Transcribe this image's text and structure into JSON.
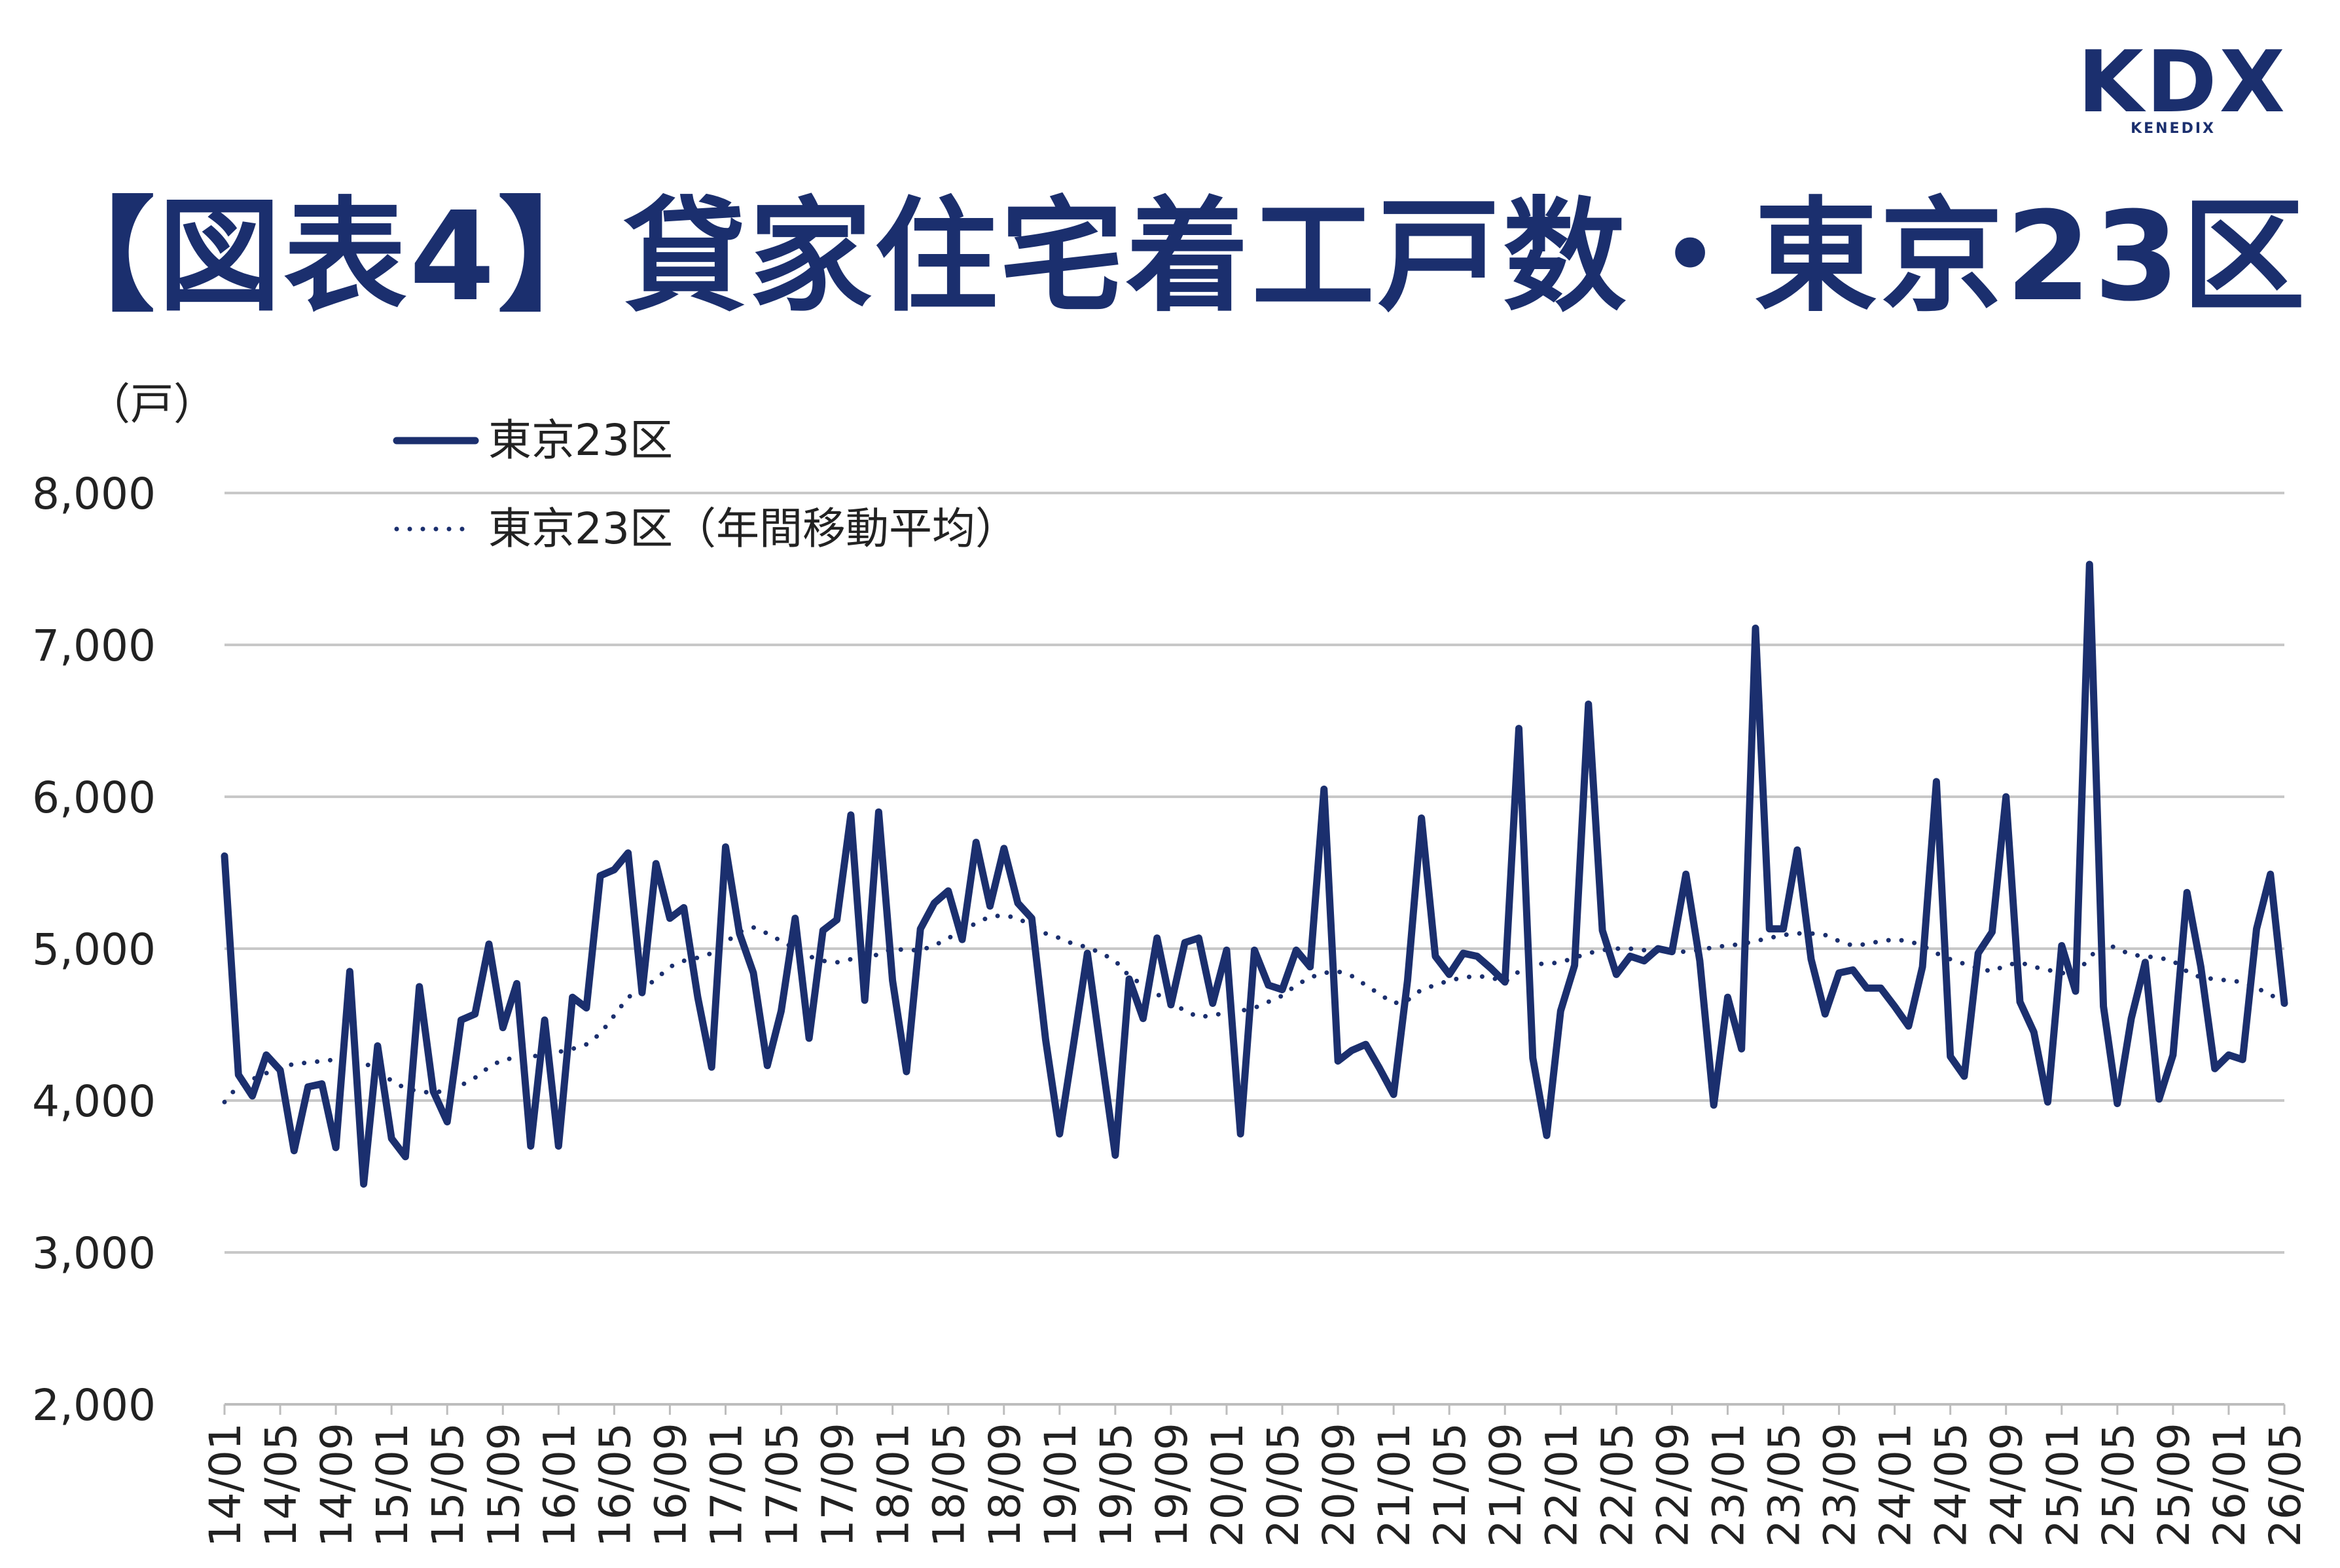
{
  "logo": {
    "mark": "KDX",
    "sub": "KENEDIX"
  },
  "chart_data": {
    "type": "line",
    "title": "【図表4】貸家住宅着工戸数・東京23区",
    "ylabel": "（戸）",
    "xlabel": "",
    "ylim": [
      2000,
      8000
    ],
    "yticks": [
      2000,
      3000,
      4000,
      5000,
      6000,
      7000,
      8000
    ],
    "ytick_labels": [
      "2,000",
      "3,000",
      "4,000",
      "5,000",
      "6,000",
      "7,000",
      "8,000"
    ],
    "grid": true,
    "legend_position": "top-left",
    "x_labels": [
      "14/01",
      "14/05",
      "14/09",
      "15/01",
      "15/05",
      "15/09",
      "16/01",
      "16/05",
      "16/09",
      "17/01",
      "17/05",
      "17/09",
      "18/01",
      "18/05",
      "18/09",
      "19/01",
      "19/05",
      "19/09",
      "20/01",
      "20/05",
      "20/09",
      "21/01",
      "21/05",
      "21/09",
      "22/01",
      "22/05",
      "22/09",
      "23/01",
      "23/05",
      "23/09",
      "24/01",
      "24/05",
      "24/09",
      "25/01",
      "25/05",
      "25/09",
      "26/01",
      "26/05"
    ],
    "colors": {
      "line": "#1b2f6e",
      "grid": "#c8c8c8"
    },
    "series": [
      {
        "name": "東京23区",
        "style": "solid",
        "values": [
          5610,
          4170,
          4030,
          4300,
          4200,
          3670,
          4090,
          4110,
          3690,
          4850,
          3450,
          4360,
          3750,
          3630,
          4750,
          4060,
          3860,
          4530,
          4570,
          5030,
          4480,
          4770,
          3700,
          4530,
          3700,
          4680,
          4610,
          5480,
          5520,
          5630,
          4710,
          5560,
          5200,
          5270,
          4680,
          4220,
          5670,
          5100,
          4840,
          4230,
          4590,
          5200,
          4410,
          5120,
          5190,
          5880,
          4660,
          5900,
          4790,
          4190,
          5130,
          5300,
          5380,
          5060,
          5700,
          5280,
          5660,
          5300,
          5200,
          4400,
          3780,
          4370,
          4970,
          4300,
          3640,
          4800,
          4540,
          5070,
          4630,
          5040,
          5070,
          4640,
          4990,
          3780,
          4990,
          4760,
          4730,
          4990,
          4880,
          6050,
          4260,
          4330,
          4370,
          4210,
          4040,
          4790,
          5860,
          4950,
          4830,
          4970,
          4950,
          4870,
          4780,
          6450,
          4280,
          3770,
          4590,
          4890,
          6610,
          5120,
          4830,
          4950,
          4920,
          5000,
          4980,
          5490,
          4920,
          3970,
          4680,
          4340,
          7110,
          5130,
          5130,
          5650,
          4930,
          4570,
          4840,
          4860,
          4740,
          4740,
          4620,
          4490,
          4880,
          6100,
          4290,
          4160,
          4970,
          5110,
          6000,
          4650,
          4450,
          3990,
          5020,
          4720,
          7530,
          4620,
          3980,
          4540,
          4910,
          4010,
          4300,
          5370,
          4880,
          4210,
          4300,
          4270,
          5130,
          5490,
          4640
        ]
      },
      {
        "name": "東京23区（年間移動平均）",
        "style": "dotted",
        "values": [
          3990,
          4100,
          4140,
          4180,
          4220,
          4240,
          4250,
          4260,
          4270,
          4280,
          4250,
          4200,
          4130,
          4080,
          4060,
          4050,
          4070,
          4100,
          4150,
          4220,
          4270,
          4280,
          4290,
          4300,
          4320,
          4340,
          4370,
          4440,
          4560,
          4680,
          4730,
          4800,
          4880,
          4920,
          4940,
          4970,
          5040,
          5110,
          5140,
          5100,
          5050,
          5000,
          4950,
          4920,
          4910,
          4930,
          4950,
          4960,
          5000,
          4990,
          4990,
          5020,
          5070,
          5110,
          5170,
          5210,
          5220,
          5200,
          5150,
          5100,
          5070,
          5030,
          5010,
          4970,
          4920,
          4820,
          4760,
          4700,
          4650,
          4590,
          4550,
          4560,
          4580,
          4590,
          4610,
          4650,
          4690,
          4760,
          4810,
          4840,
          4850,
          4820,
          4760,
          4700,
          4640,
          4660,
          4730,
          4760,
          4790,
          4810,
          4820,
          4810,
          4780,
          4850,
          4900,
          4900,
          4910,
          4940,
          4970,
          4990,
          5000,
          5000,
          4990,
          4980,
          4980,
          4980,
          4990,
          5010,
          5020,
          5030,
          5050,
          5070,
          5090,
          5100,
          5100,
          5090,
          5050,
          5020,
          5030,
          5050,
          5060,
          5050,
          5020,
          4970,
          4930,
          4900,
          4870,
          4850,
          4890,
          4910,
          4880,
          4860,
          4840,
          4830,
          4940,
          5040,
          5000,
          4960,
          4950,
          4940,
          4920,
          4850,
          4810,
          4800,
          4790,
          4780,
          4740,
          4700,
          4630
        ]
      }
    ]
  }
}
